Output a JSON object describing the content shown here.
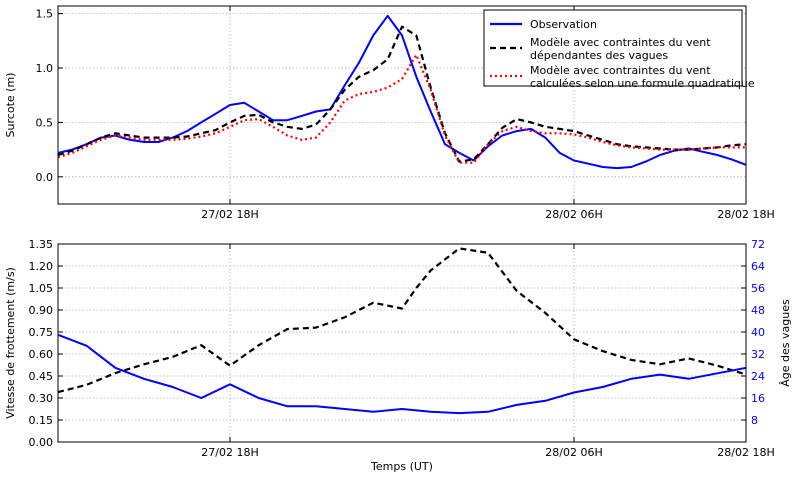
{
  "chart_data": [
    {
      "type": "line",
      "ylabel": "Surcote (m)",
      "xlabel": "",
      "x_ticks": [
        "27/02 18H",
        "28/02 06H",
        "28/02 18H"
      ],
      "xlim": [
        12,
        36
      ],
      "ylim": [
        -0.25,
        1.57
      ],
      "y_ticks": [
        "0.0",
        "0.5",
        "1.0",
        "1.5"
      ],
      "grid": true,
      "legend_position": "top-right",
      "series": [
        {
          "name": "Observation",
          "color": "#0000ff",
          "style": "solid",
          "x": [
            12,
            12.5,
            13,
            13.5,
            14,
            14.5,
            15,
            15.5,
            16,
            16.5,
            17,
            17.5,
            18,
            18.5,
            19,
            19.5,
            20,
            20.5,
            21,
            21.5,
            22,
            22.5,
            23,
            23.5,
            24,
            24.5,
            25,
            25.5,
            26,
            26.5,
            27,
            27.5,
            28,
            28.5,
            29,
            29.5,
            30,
            30.5,
            31,
            31.5,
            32,
            32.5,
            33,
            33.5,
            34,
            34.5,
            35,
            35.5,
            36
          ],
          "y": [
            0.22,
            0.25,
            0.3,
            0.36,
            0.38,
            0.34,
            0.32,
            0.32,
            0.36,
            0.42,
            0.5,
            0.58,
            0.66,
            0.68,
            0.6,
            0.52,
            0.52,
            0.56,
            0.6,
            0.62,
            0.84,
            1.05,
            1.3,
            1.48,
            1.3,
            0.92,
            0.6,
            0.3,
            0.22,
            0.15,
            0.28,
            0.38,
            0.42,
            0.44,
            0.36,
            0.22,
            0.15,
            0.12,
            0.09,
            0.08,
            0.09,
            0.14,
            0.2,
            0.24,
            0.26,
            0.23,
            0.2,
            0.16,
            0.11
          ]
        },
        {
          "name": "Modèle avec contraintes du vent\ndépendantes des vagues",
          "color": "#000000",
          "style": "dashed",
          "x": [
            12,
            12.5,
            13,
            13.5,
            14,
            14.5,
            15,
            15.5,
            16,
            16.5,
            17,
            17.5,
            18,
            18.5,
            19,
            19.5,
            20,
            20.5,
            21,
            21.5,
            22,
            22.5,
            23,
            23.5,
            24,
            24.5,
            25,
            25.5,
            26,
            26.5,
            27,
            27.5,
            28,
            28.5,
            29,
            29.5,
            30,
            30.5,
            31,
            31.5,
            32,
            32.5,
            33,
            33.5,
            34,
            34.5,
            35,
            35.5,
            36
          ],
          "y": [
            0.2,
            0.24,
            0.3,
            0.36,
            0.4,
            0.38,
            0.36,
            0.36,
            0.36,
            0.37,
            0.4,
            0.43,
            0.5,
            0.56,
            0.57,
            0.5,
            0.46,
            0.44,
            0.48,
            0.62,
            0.8,
            0.92,
            0.98,
            1.08,
            1.38,
            1.3,
            0.82,
            0.4,
            0.14,
            0.16,
            0.3,
            0.45,
            0.53,
            0.5,
            0.46,
            0.44,
            0.42,
            0.38,
            0.34,
            0.3,
            0.28,
            0.27,
            0.26,
            0.25,
            0.25,
            0.26,
            0.27,
            0.29,
            0.3
          ]
        },
        {
          "name": "Modèle avec contraintes du vent\ncalculées selon une formule quadratique",
          "color": "#ff0000",
          "style": "dotted",
          "x": [
            12,
            12.5,
            13,
            13.5,
            14,
            14.5,
            15,
            15.5,
            16,
            16.5,
            17,
            17.5,
            18,
            18.5,
            19,
            19.5,
            20,
            20.5,
            21,
            21.5,
            22,
            22.5,
            23,
            23.5,
            24,
            24.5,
            25,
            25.5,
            26,
            26.5,
            27,
            27.5,
            28,
            28.5,
            29,
            29.5,
            30,
            30.5,
            31,
            31.5,
            32,
            32.5,
            33,
            33.5,
            34,
            34.5,
            35,
            35.5,
            36
          ],
          "y": [
            0.18,
            0.22,
            0.28,
            0.34,
            0.38,
            0.36,
            0.34,
            0.34,
            0.34,
            0.35,
            0.37,
            0.4,
            0.46,
            0.52,
            0.53,
            0.46,
            0.38,
            0.34,
            0.36,
            0.5,
            0.7,
            0.76,
            0.78,
            0.82,
            0.9,
            1.12,
            0.8,
            0.38,
            0.13,
            0.13,
            0.3,
            0.42,
            0.46,
            0.42,
            0.4,
            0.4,
            0.39,
            0.36,
            0.32,
            0.29,
            0.27,
            0.26,
            0.25,
            0.25,
            0.25,
            0.26,
            0.27,
            0.27,
            0.27
          ]
        }
      ]
    },
    {
      "type": "line",
      "ylabel": "Vitesse de frottement (m/s)",
      "y2label": "Âge des vagues",
      "xlabel": "Temps (UT)",
      "x_ticks": [
        "27/02 18H",
        "28/02 06H",
        "28/02 18H"
      ],
      "xlim": [
        12,
        36
      ],
      "ylim": [
        0,
        1.35
      ],
      "y_ticks": [
        "0.00",
        "0.15",
        "0.30",
        "0.45",
        "0.60",
        "0.75",
        "0.90",
        "1.05",
        "1.20",
        "1.35"
      ],
      "y2lim": [
        0,
        72
      ],
      "y2_ticks": [
        "8",
        "16",
        "24",
        "32",
        "40",
        "48",
        "56",
        "64",
        "72"
      ],
      "grid": true,
      "series": [
        {
          "axis": "left",
          "color": "#000000",
          "style": "dashed",
          "x": [
            12,
            13,
            14,
            15,
            16,
            17,
            18,
            19,
            20,
            21,
            22,
            22.5,
            23,
            24,
            24.5,
            25,
            26,
            27,
            28,
            29,
            30,
            31,
            32,
            33,
            34,
            35,
            36
          ],
          "y": [
            0.34,
            0.39,
            0.47,
            0.53,
            0.58,
            0.66,
            0.52,
            0.66,
            0.77,
            0.78,
            0.85,
            0.9,
            0.95,
            0.91,
            1.05,
            1.17,
            1.32,
            1.29,
            1.03,
            0.88,
            0.7,
            0.62,
            0.56,
            0.53,
            0.57,
            0.52,
            0.46
          ]
        },
        {
          "axis": "right",
          "color": "#0000ff",
          "style": "solid",
          "x": [
            12,
            13,
            14,
            15,
            16,
            17,
            18,
            19,
            20,
            21,
            22,
            23,
            24,
            25,
            26,
            27,
            28,
            29,
            30,
            31,
            32,
            33,
            34,
            35,
            36
          ],
          "y": [
            39,
            35,
            27,
            23,
            20,
            16,
            21,
            16,
            13,
            13,
            12,
            11,
            12,
            11,
            10.5,
            11,
            13.5,
            15,
            18,
            20,
            23,
            24.5,
            23,
            25,
            27
          ]
        }
      ]
    }
  ]
}
